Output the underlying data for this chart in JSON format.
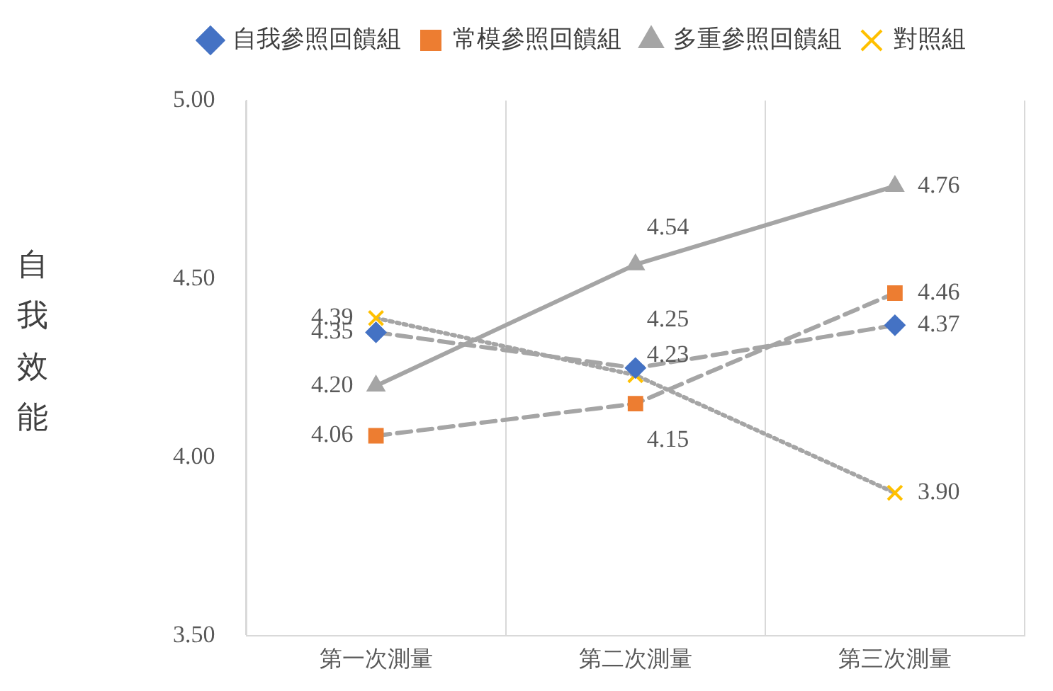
{
  "chart_data": {
    "type": "line",
    "ylabel": "自我效能",
    "categories": [
      "第一次測量",
      "第二次測量",
      "第三次測量"
    ],
    "series": [
      {
        "name": "自我參照回饋組",
        "color": "#4472c4",
        "marker": "diamond",
        "line_style": "dashed",
        "values": [
          4.35,
          4.25,
          4.37
        ],
        "value_labels": [
          "4.35",
          "4.25",
          "4.37"
        ]
      },
      {
        "name": "常模參照回饋組",
        "color": "#ed7d31",
        "marker": "square",
        "line_style": "dashed",
        "values": [
          4.06,
          4.15,
          4.46
        ],
        "value_labels": [
          "4.06",
          "4.15",
          "4.46"
        ]
      },
      {
        "name": "多重參照回饋組",
        "color": "#a5a5a5",
        "marker": "triangle",
        "line_style": "solid",
        "values": [
          4.2,
          4.54,
          4.76
        ],
        "value_labels": [
          "4.20",
          "4.54",
          "4.76"
        ]
      },
      {
        "name": "對照組",
        "color": "#ffc000",
        "marker": "cross",
        "line_style": "dotted",
        "values": [
          4.39,
          4.23,
          3.9
        ],
        "value_labels": [
          "4.39",
          "4.23",
          "3.90"
        ]
      }
    ],
    "ylim": [
      3.5,
      5
    ],
    "yticks": [
      {
        "value": 3.5,
        "label": "3.50"
      },
      {
        "value": 4,
        "label": "4.00"
      },
      {
        "value": 4.5,
        "label": "4.50"
      },
      {
        "value": 5,
        "label": "5.00"
      }
    ],
    "grid": "x",
    "legend": "top"
  }
}
